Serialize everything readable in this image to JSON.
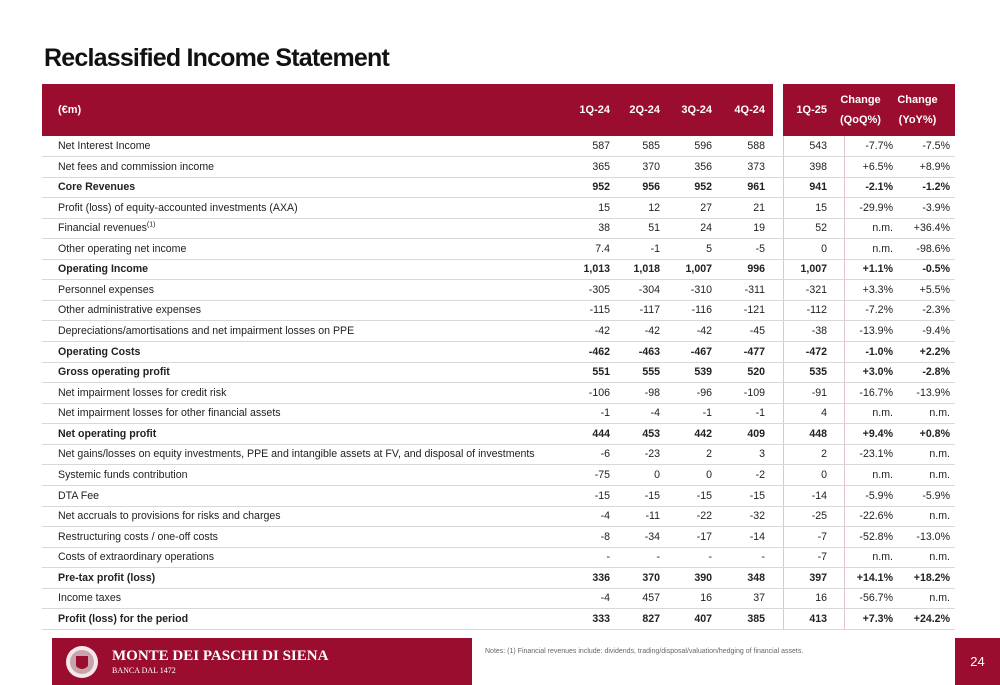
{
  "header": {
    "title": "Reclassified Income Statement"
  },
  "table": {
    "columns": [
      [
        "(€m)"
      ],
      [
        "1Q-24"
      ],
      [
        "2Q-24"
      ],
      [
        "3Q-24"
      ],
      [
        "4Q-24"
      ],
      [
        "1Q-25"
      ],
      [
        "Change",
        "(QoQ%)"
      ],
      [
        "Change",
        "(YoY%)"
      ]
    ],
    "rows": [
      {
        "label": "Net Interest Income",
        "cells": [
          "587",
          "585",
          "596",
          "588",
          "543",
          "-7.7%",
          "-7.5%"
        ]
      },
      {
        "label": "Net fees and commission income",
        "cells": [
          "365",
          "370",
          "356",
          "373",
          "398",
          "+6.5%",
          "+8.9%"
        ]
      },
      {
        "label": "Core Revenues",
        "bold": true,
        "cells": [
          "952",
          "956",
          "952",
          "961",
          "941",
          "-2.1%",
          "-1.2%"
        ]
      },
      {
        "label": "Profit (loss) of equity-accounted investments (AXA)",
        "cells": [
          "15",
          "12",
          "27",
          "21",
          "15",
          "-29.9%",
          "-3.9%"
        ]
      },
      {
        "label": "Financial revenues",
        "sup": "(1)",
        "cells": [
          "38",
          "51",
          "24",
          "19",
          "52",
          "n.m.",
          "+36.4%"
        ]
      },
      {
        "label": "Other operating net income",
        "cells": [
          "7.4",
          "-1",
          "5",
          "-5",
          "0",
          "n.m.",
          "-98.6%"
        ]
      },
      {
        "label": "Operating Income",
        "bold": true,
        "cells": [
          "1,013",
          "1,018",
          "1,007",
          "996",
          "1,007",
          "+1.1%",
          "-0.5%"
        ]
      },
      {
        "label": "Personnel expenses",
        "cells": [
          "-305",
          "-304",
          "-310",
          "-311",
          "-321",
          "+3.3%",
          "+5.5%"
        ]
      },
      {
        "label": "Other administrative expenses",
        "cells": [
          "-115",
          "-117",
          "-116",
          "-121",
          "-112",
          "-7.2%",
          "-2.3%"
        ]
      },
      {
        "label": "Depreciations/amortisations and net impairment losses on PPE",
        "cells": [
          "-42",
          "-42",
          "-42",
          "-45",
          "-38",
          "-13.9%",
          "-9.4%"
        ]
      },
      {
        "label": "Operating Costs",
        "bold": true,
        "cells": [
          "-462",
          "-463",
          "-467",
          "-477",
          "-472",
          "-1.0%",
          "+2.2%"
        ]
      },
      {
        "label": "Gross operating profit",
        "bold": true,
        "cells": [
          "551",
          "555",
          "539",
          "520",
          "535",
          "+3.0%",
          "-2.8%"
        ]
      },
      {
        "label": "Net impairment losses for credit risk",
        "cells": [
          "-106",
          "-98",
          "-96",
          "-109",
          "-91",
          "-16.7%",
          "-13.9%"
        ]
      },
      {
        "label": "Net impairment losses for other financial assets",
        "cells": [
          "-1",
          "-4",
          "-1",
          "-1",
          "4",
          "n.m.",
          "n.m."
        ]
      },
      {
        "label": "Net operating profit",
        "bold": true,
        "cells": [
          "444",
          "453",
          "442",
          "409",
          "448",
          "+9.4%",
          "+0.8%"
        ]
      },
      {
        "label": "Net gains/losses on equity investments, PPE and intangible assets at FV, and disposal of investments",
        "cells": [
          "-6",
          "-23",
          "2",
          "3",
          "2",
          "-23.1%",
          "n.m."
        ]
      },
      {
        "label": "Systemic funds contribution",
        "cells": [
          "-75",
          "0",
          "0",
          "-2",
          "0",
          "n.m.",
          "n.m."
        ]
      },
      {
        "label": "DTA Fee",
        "cells": [
          "-15",
          "-15",
          "-15",
          "-15",
          "-14",
          "-5.9%",
          "-5.9%"
        ]
      },
      {
        "label": "Net accruals to provisions for risks and charges",
        "cells": [
          "-4",
          "-11",
          "-22",
          "-32",
          "-25",
          "-22.6%",
          "n.m."
        ]
      },
      {
        "label": "Restructuring costs / one-off costs",
        "cells": [
          "-8",
          "-34",
          "-17",
          "-14",
          "-7",
          "-52.8%",
          "-13.0%"
        ]
      },
      {
        "label": "Costs of extraordinary operations",
        "cells": [
          "-",
          "-",
          "-",
          "-",
          "-7",
          "n.m.",
          "n.m."
        ]
      },
      {
        "label": "Pre-tax profit (loss)",
        "bold": true,
        "cells": [
          "336",
          "370",
          "390",
          "348",
          "397",
          "+14.1%",
          "+18.2%"
        ]
      },
      {
        "label": "Income taxes",
        "cells": [
          "-4",
          "457",
          "16",
          "37",
          "16",
          "-56.7%",
          "n.m."
        ]
      },
      {
        "label": "Profit (loss) for the period",
        "bold": true,
        "cells": [
          "333",
          "827",
          "407",
          "385",
          "413",
          "+7.3%",
          "+24.2%"
        ]
      }
    ]
  },
  "footer": {
    "brand": "MONTE DEI PASCHI DI SIENA",
    "tagline": "BANCA DAL 1472",
    "notes": "Notes: (1) Financial revenues include: dividends, trading/disposal/valuation/hedging of financial assets.",
    "page": "24"
  }
}
